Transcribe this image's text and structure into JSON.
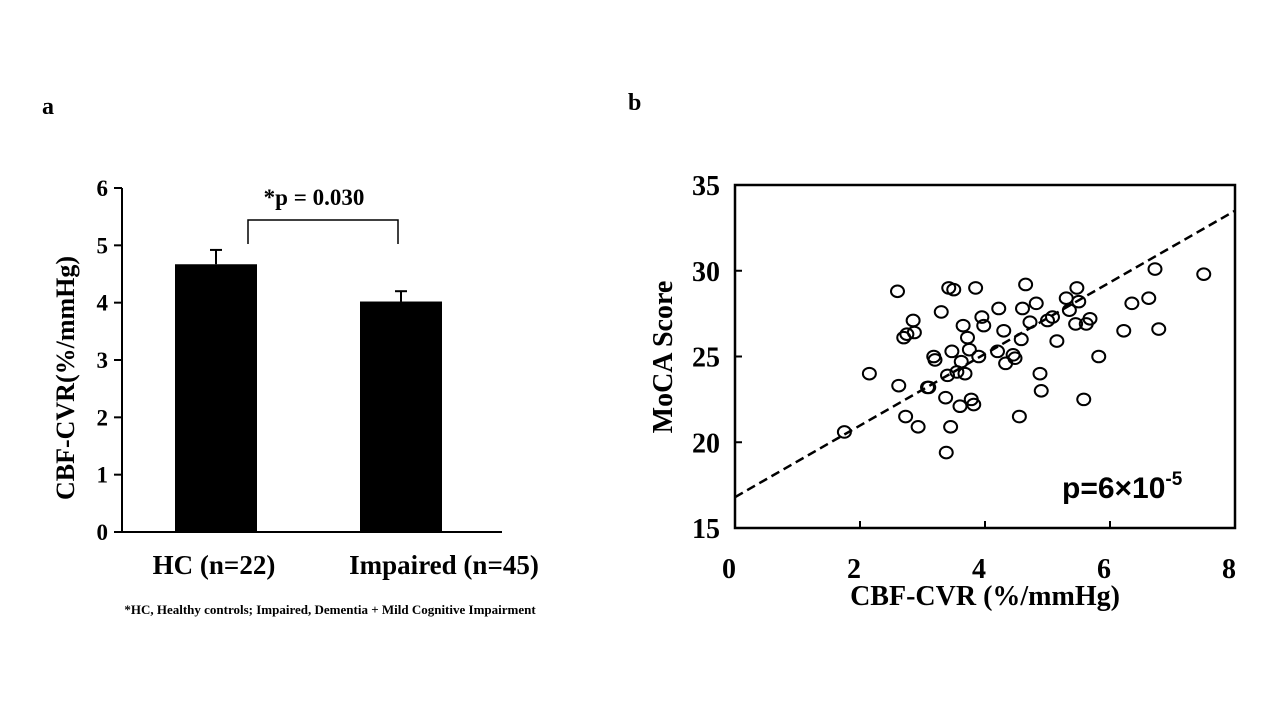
{
  "chart_data": [
    {
      "panel_label": "a",
      "type": "bar",
      "categories": [
        "HC (n=22)",
        "Impaired (n=45)"
      ],
      "values": [
        4.67,
        4.02
      ],
      "error_upper": [
        0.25,
        0.18
      ],
      "ylabel": "CBF-CVR(%/mmHg)",
      "xlabel": "",
      "ylim": [
        0,
        6
      ],
      "yticks": [
        "0",
        "1",
        "2",
        "3",
        "4",
        "5",
        "6"
      ],
      "significance_label": "*p = 0.030",
      "footnote": "*HC, Healthy controls;  Impaired,  Dementia + Mild Cognitive Impairment",
      "bar_color": "#000000"
    },
    {
      "panel_label": "b",
      "type": "scatter",
      "xlabel": "CBF-CVR (%/mmHg)",
      "ylabel": "MoCA Score",
      "xlim": [
        0,
        8
      ],
      "ylim": [
        15,
        35
      ],
      "xticks": [
        "0",
        "2",
        "4",
        "6",
        "8"
      ],
      "yticks": [
        "15",
        "20",
        "25",
        "30",
        "35"
      ],
      "annotation": {
        "base": "p=6×10",
        "exponent": "-5"
      },
      "trendline": {
        "x": [
          0,
          8
        ],
        "y": [
          16.8,
          33.5
        ],
        "style": "dashed"
      },
      "points": [
        [
          1.75,
          20.6
        ],
        [
          2.15,
          24.0
        ],
        [
          2.6,
          28.8
        ],
        [
          2.62,
          23.3
        ],
        [
          2.7,
          26.1
        ],
        [
          2.73,
          21.5
        ],
        [
          2.75,
          26.3
        ],
        [
          2.85,
          27.1
        ],
        [
          2.87,
          26.4
        ],
        [
          2.93,
          20.9
        ],
        [
          3.08,
          23.2
        ],
        [
          3.1,
          23.2
        ],
        [
          3.18,
          25.0
        ],
        [
          3.2,
          24.8
        ],
        [
          3.3,
          27.6
        ],
        [
          3.37,
          22.6
        ],
        [
          3.38,
          19.4
        ],
        [
          3.4,
          23.9
        ],
        [
          3.42,
          29.0
        ],
        [
          3.45,
          20.9
        ],
        [
          3.47,
          25.3
        ],
        [
          3.5,
          28.9
        ],
        [
          3.55,
          24.1
        ],
        [
          3.6,
          22.1
        ],
        [
          3.62,
          24.7
        ],
        [
          3.65,
          26.8
        ],
        [
          3.68,
          24.0
        ],
        [
          3.72,
          26.1
        ],
        [
          3.75,
          25.4
        ],
        [
          3.78,
          22.5
        ],
        [
          3.82,
          22.2
        ],
        [
          3.85,
          29.0
        ],
        [
          3.9,
          25.0
        ],
        [
          3.95,
          27.3
        ],
        [
          3.98,
          26.8
        ],
        [
          4.2,
          25.3
        ],
        [
          4.22,
          27.8
        ],
        [
          4.3,
          26.5
        ],
        [
          4.33,
          24.6
        ],
        [
          4.45,
          25.1
        ],
        [
          4.48,
          24.9
        ],
        [
          4.55,
          21.5
        ],
        [
          4.58,
          26.0
        ],
        [
          4.6,
          27.8
        ],
        [
          4.65,
          29.2
        ],
        [
          4.72,
          27.0
        ],
        [
          4.82,
          28.1
        ],
        [
          4.88,
          24.0
        ],
        [
          4.9,
          23.0
        ],
        [
          5.0,
          27.1
        ],
        [
          5.08,
          27.3
        ],
        [
          5.15,
          25.9
        ],
        [
          5.3,
          28.4
        ],
        [
          5.35,
          27.7
        ],
        [
          5.45,
          26.9
        ],
        [
          5.47,
          29.0
        ],
        [
          5.5,
          28.2
        ],
        [
          5.58,
          22.5
        ],
        [
          5.62,
          26.9
        ],
        [
          5.68,
          27.2
        ],
        [
          5.82,
          25.0
        ],
        [
          6.22,
          26.5
        ],
        [
          6.35,
          28.1
        ],
        [
          6.62,
          28.4
        ],
        [
          6.72,
          30.1
        ],
        [
          6.78,
          26.6
        ],
        [
          7.5,
          29.8
        ]
      ]
    }
  ]
}
